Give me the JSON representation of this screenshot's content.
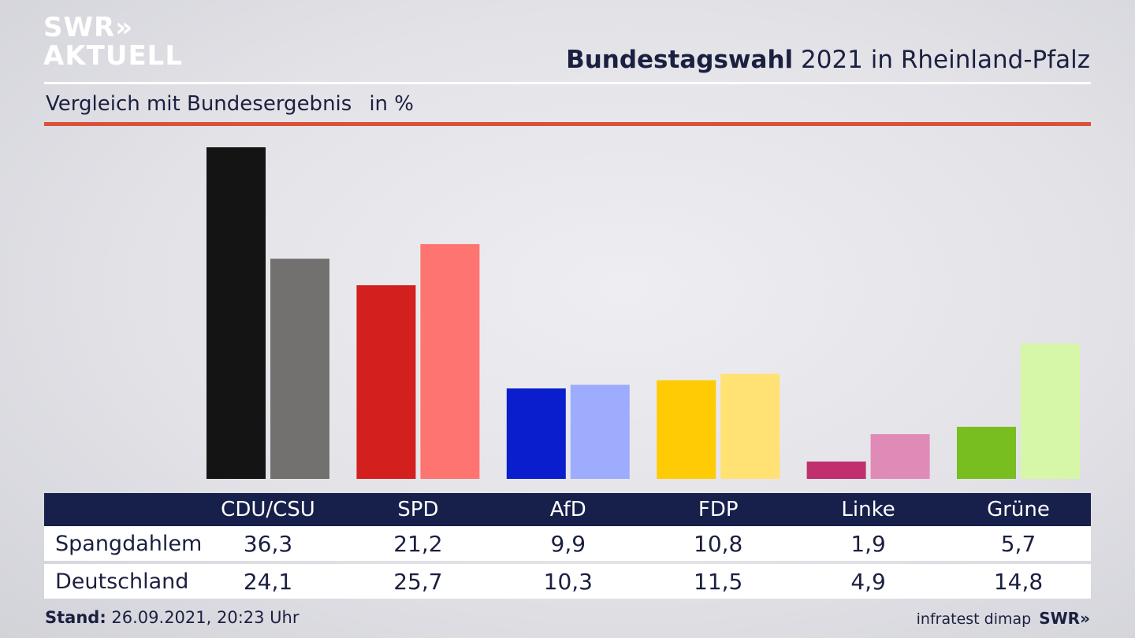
{
  "branding": {
    "logo_line1": "SWR»",
    "logo_line2": "AKTUELL",
    "footer_logo": "SWR»",
    "source": "infratest dimap"
  },
  "header": {
    "title_bold": "Bundestagswahl",
    "title_rest": " 2021 in Rheinland-Pfalz",
    "subtitle": "Vergleich mit Bundesergebnis",
    "unit": "in %"
  },
  "footer": {
    "stand_label": "Stand:",
    "stand_value": " 26.09.2021, 20:23 Uhr"
  },
  "chart_data": {
    "type": "bar",
    "categories": [
      "CDU/CSU",
      "SPD",
      "AfD",
      "FDP",
      "Linke",
      "Grüne"
    ],
    "series": [
      {
        "name": "Spangdahlem",
        "values": [
          36.3,
          21.2,
          9.9,
          10.8,
          1.9,
          5.7
        ],
        "labels": [
          "36,3",
          "21,2",
          "9,9",
          "10,8",
          "1,9",
          "5,7"
        ]
      },
      {
        "name": "Deutschland",
        "values": [
          24.1,
          25.7,
          10.3,
          11.5,
          4.9,
          14.8
        ],
        "labels": [
          "24,1",
          "25,7",
          "10,3",
          "11,5",
          "4,9",
          "14,8"
        ]
      }
    ],
    "colors_primary": [
      "#141414",
      "#d41f1f",
      "#0a1ecd",
      "#ffcb05",
      "#c0306e",
      "#78be1e"
    ],
    "colors_secondary": [
      "#727170",
      "#fe7470",
      "#9dacfd",
      "#ffe174",
      "#e08ab8",
      "#d6f7a7"
    ],
    "ylim": [
      0,
      36.3
    ]
  }
}
